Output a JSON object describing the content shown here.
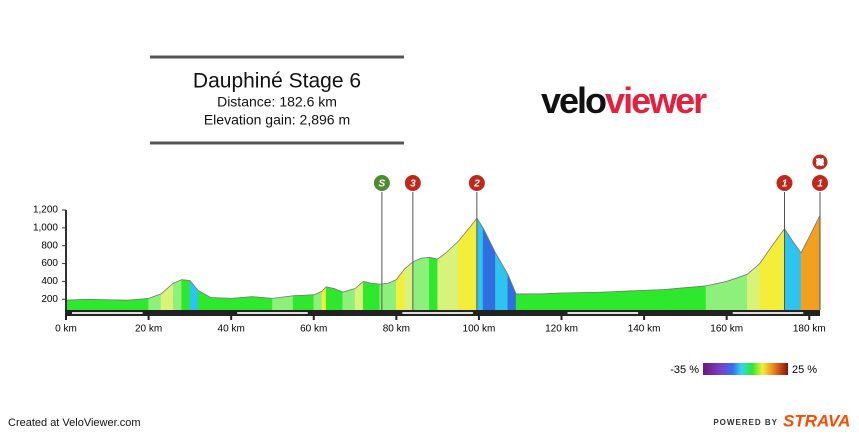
{
  "chart_data": {
    "type": "elevation-profile",
    "title": "Dauphiné Stage 6",
    "subtitle": "Distance: 182.6 km",
    "subtitle2": "Elevation gain: 2,896 m",
    "logo": {
      "part1": "velo",
      "part2": "viewer"
    },
    "x": [
      0,
      5,
      10,
      15,
      20,
      23,
      26,
      28,
      30,
      32,
      35,
      40,
      45,
      50,
      55,
      60,
      62,
      63,
      65,
      67,
      70,
      72,
      74,
      76,
      78,
      80,
      82,
      84,
      86,
      88,
      90,
      92,
      95,
      98,
      99.5,
      101,
      104,
      107,
      109,
      115,
      120,
      130,
      140,
      145,
      150,
      155,
      160,
      165,
      168,
      171,
      174,
      176,
      178,
      180,
      182.6
    ],
    "values": [
      190,
      200,
      195,
      190,
      210,
      260,
      380,
      420,
      410,
      300,
      220,
      210,
      230,
      210,
      240,
      250,
      290,
      340,
      320,
      280,
      320,
      400,
      380,
      370,
      380,
      420,
      540,
      620,
      660,
      670,
      650,
      720,
      850,
      1020,
      1110,
      1000,
      720,
      480,
      260,
      260,
      270,
      280,
      300,
      310,
      330,
      350,
      400,
      480,
      600,
      800,
      990,
      850,
      720,
      900,
      1140
    ],
    "xlim": [
      0,
      182.6
    ],
    "ylim": [
      80,
      1200
    ],
    "xticks": [
      {
        "value": 0,
        "label": "0 km"
      },
      {
        "value": 20,
        "label": "20 km"
      },
      {
        "value": 40,
        "label": "40 km"
      },
      {
        "value": 60,
        "label": "60 km"
      },
      {
        "value": 80,
        "label": "80 km"
      },
      {
        "value": 100,
        "label": "100 km"
      },
      {
        "value": 120,
        "label": "120 km"
      },
      {
        "value": 140,
        "label": "140 km"
      },
      {
        "value": 160,
        "label": "160 km"
      },
      {
        "value": 180,
        "label": "180 km"
      }
    ],
    "yticks": [
      200,
      400,
      600,
      800,
      {
        "value": 1000,
        "label": "1,000"
      },
      {
        "value": 1200,
        "label": "1,200"
      }
    ],
    "markers": [
      {
        "x": 76.5,
        "label": "S",
        "color": "#4e8a2e"
      },
      {
        "x": 84,
        "label": "3",
        "color": "#c0281c"
      },
      {
        "x": 99.5,
        "label": "2",
        "color": "#c0281c"
      },
      {
        "x": 174,
        "label": "1",
        "color": "#c0281c"
      },
      {
        "x": 182.6,
        "label": "1",
        "color": "#c0281c"
      }
    ],
    "colorbar": {
      "min_label": "-35 %",
      "max_label": "25 %"
    },
    "footer": {
      "created": "Created at VeloViewer.com",
      "powered": "POWERED BY",
      "brand": "STRAVA"
    }
  }
}
